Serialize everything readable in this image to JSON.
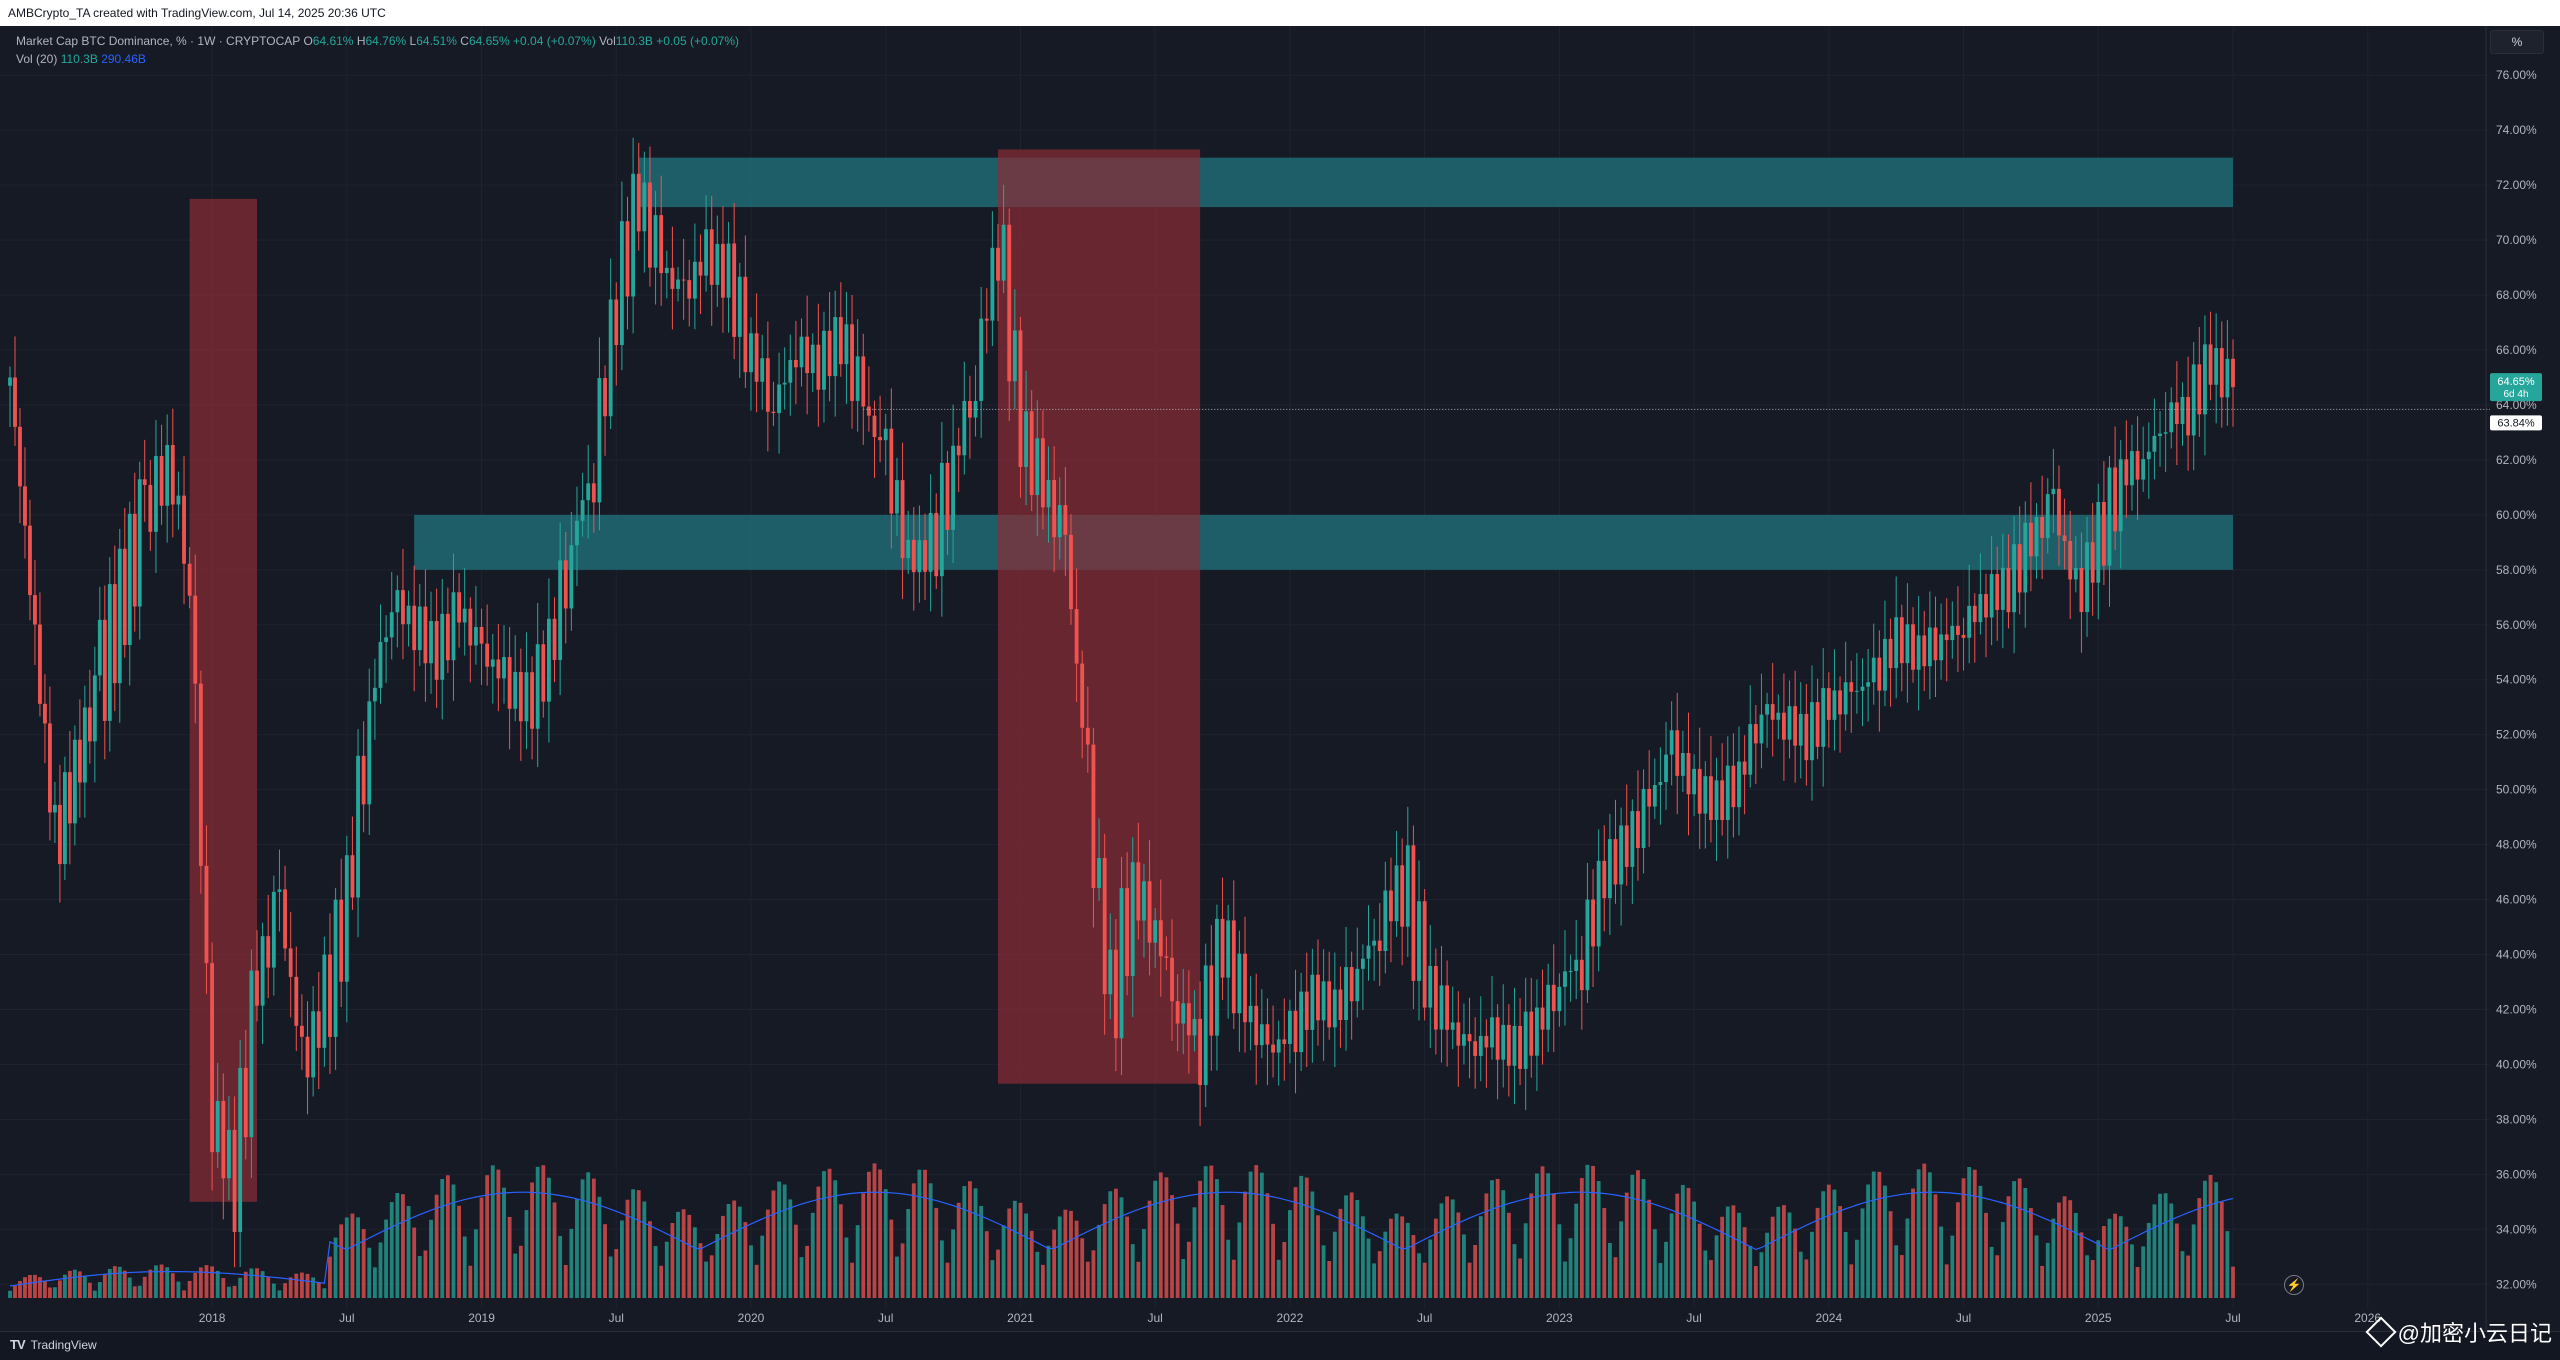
{
  "header": {
    "caption": "AMBCrypto_TA created with TradingView.com, Jul 14, 2025 20:36 UTC"
  },
  "legend": {
    "symbol": "Market Cap BTC Dominance, % · 1W · CRYPTOCAP",
    "o_label": "O",
    "o_value": "64.61%",
    "h_label": "H",
    "h_value": "64.76%",
    "l_label": "L",
    "l_value": "64.51%",
    "c_label": "C",
    "c_value": "64.65%",
    "change": "+0.04 (+0.07%)",
    "vol_label": "Vol",
    "vol_value": "110.3B",
    "vol_change": "+0.05 (+0.07%)",
    "vol20_label": "Vol (20)",
    "vol20_value": "110.3B",
    "vol20_ma": "290.46B"
  },
  "toolbar": {
    "percent_button": "%"
  },
  "price_labels": {
    "last": "64.65%",
    "countdown": "6d 4h",
    "line": "63.84%"
  },
  "footer": {
    "brand": "TradingView",
    "logo": "TV",
    "watermark": "@加密小云日记"
  },
  "colors": {
    "background": "#161a25",
    "up": "#26a69a",
    "down": "#ef5350",
    "zone_support": "#1f6b74",
    "zone_drop": "#8b2c35",
    "vol_ma": "#2962ff"
  },
  "chart_data": {
    "type": "candlestick",
    "title": "Market Cap BTC Dominance, %",
    "timeframe": "1W",
    "ylim": [
      31.5,
      77.5
    ],
    "y_ticks": [
      "32.00%",
      "34.00%",
      "36.00%",
      "38.00%",
      "40.00%",
      "42.00%",
      "44.00%",
      "46.00%",
      "48.00%",
      "50.00%",
      "52.00%",
      "54.00%",
      "56.00%",
      "58.00%",
      "60.00%",
      "62.00%",
      "64.00%",
      "66.00%",
      "68.00%",
      "70.00%",
      "72.00%",
      "74.00%",
      "76.00%"
    ],
    "x_ticks": [
      "2018",
      "Jul",
      "2019",
      "Jul",
      "2020",
      "Jul",
      "2021",
      "Jul",
      "2022",
      "Jul",
      "2023",
      "Jul",
      "2024",
      "Jul",
      "2025",
      "Jul",
      "2026"
    ],
    "x_range": [
      "2017-04",
      "2026-06"
    ],
    "series": [
      {
        "name": "BTC Dominance close (approx.)",
        "points": [
          [
            "2017-04",
            65.0
          ],
          [
            "2017-06",
            48.0
          ],
          [
            "2017-08",
            54.0
          ],
          [
            "2017-10",
            60.0
          ],
          [
            "2017-11",
            62.0
          ],
          [
            "2017-12",
            58.0
          ],
          [
            "2018-01",
            38.0
          ],
          [
            "2018-02",
            36.0
          ],
          [
            "2018-03",
            43.0
          ],
          [
            "2018-04",
            46.0
          ],
          [
            "2018-05",
            40.0
          ],
          [
            "2018-06",
            42.0
          ],
          [
            "2018-07",
            46.0
          ],
          [
            "2018-08",
            53.0
          ],
          [
            "2018-09",
            57.0
          ],
          [
            "2018-10",
            56.0
          ],
          [
            "2018-11",
            55.0
          ],
          [
            "2018-12",
            56.5
          ],
          [
            "2019-01",
            55.0
          ],
          [
            "2019-02",
            54.0
          ],
          [
            "2019-03",
            53.0
          ],
          [
            "2019-04",
            55.0
          ],
          [
            "2019-05",
            59.0
          ],
          [
            "2019-06",
            62.0
          ],
          [
            "2019-07",
            68.0
          ],
          [
            "2019-08",
            71.5
          ],
          [
            "2019-09",
            69.0
          ],
          [
            "2019-10",
            68.0
          ],
          [
            "2019-11",
            69.5
          ],
          [
            "2019-12",
            68.5
          ],
          [
            "2020-01",
            66.0
          ],
          [
            "2020-02",
            64.0
          ],
          [
            "2020-03",
            66.0
          ],
          [
            "2020-04",
            65.5
          ],
          [
            "2020-05",
            66.5
          ],
          [
            "2020-06",
            64.0
          ],
          [
            "2020-07",
            62.0
          ],
          [
            "2020-08",
            58.5
          ],
          [
            "2020-09",
            58.5
          ],
          [
            "2020-10",
            62.0
          ],
          [
            "2020-11",
            65.0
          ],
          [
            "2020-12",
            70.5
          ],
          [
            "2021-01",
            63.0
          ],
          [
            "2021-02",
            61.0
          ],
          [
            "2021-03",
            59.0
          ],
          [
            "2021-04",
            50.0
          ],
          [
            "2021-05",
            42.0
          ],
          [
            "2021-06",
            46.5
          ],
          [
            "2021-07",
            45.0
          ],
          [
            "2021-08",
            42.0
          ],
          [
            "2021-09",
            41.0
          ],
          [
            "2021-10",
            44.5
          ],
          [
            "2021-11",
            42.0
          ],
          [
            "2021-12",
            40.5
          ],
          [
            "2022-01",
            41.0
          ],
          [
            "2022-02",
            42.5
          ],
          [
            "2022-03",
            42.0
          ],
          [
            "2022-04",
            43.5
          ],
          [
            "2022-05",
            45.0
          ],
          [
            "2022-06",
            47.0
          ],
          [
            "2022-07",
            43.0
          ],
          [
            "2022-08",
            41.5
          ],
          [
            "2022-09",
            40.5
          ],
          [
            "2022-10",
            41.0
          ],
          [
            "2022-11",
            40.5
          ],
          [
            "2022-12",
            41.5
          ],
          [
            "2023-01",
            43.0
          ],
          [
            "2023-02",
            44.0
          ],
          [
            "2023-03",
            47.0
          ],
          [
            "2023-04",
            48.0
          ],
          [
            "2023-05",
            49.5
          ],
          [
            "2023-06",
            51.5
          ],
          [
            "2023-07",
            50.0
          ],
          [
            "2023-08",
            49.5
          ],
          [
            "2023-09",
            50.5
          ],
          [
            "2023-10",
            53.0
          ],
          [
            "2023-11",
            52.5
          ],
          [
            "2023-12",
            52.0
          ],
          [
            "2024-01",
            53.0
          ],
          [
            "2024-02",
            53.5
          ],
          [
            "2024-03",
            54.0
          ],
          [
            "2024-04",
            55.5
          ],
          [
            "2024-05",
            55.0
          ],
          [
            "2024-06",
            55.5
          ],
          [
            "2024-07",
            56.0
          ],
          [
            "2024-08",
            57.0
          ],
          [
            "2024-09",
            57.5
          ],
          [
            "2024-10",
            59.0
          ],
          [
            "2024-11",
            60.5
          ],
          [
            "2024-12",
            57.0
          ],
          [
            "2025-01",
            59.0
          ],
          [
            "2025-02",
            61.5
          ],
          [
            "2025-03",
            62.0
          ],
          [
            "2025-04",
            63.5
          ],
          [
            "2025-05",
            64.0
          ],
          [
            "2025-06",
            65.5
          ],
          [
            "2025-07",
            64.65
          ]
        ]
      }
    ],
    "zones": [
      {
        "type": "resistance",
        "from": "2019-08",
        "to": "2025-07",
        "y_low": 71.2,
        "y_high": 73.0
      },
      {
        "type": "support",
        "from": "2018-10",
        "to": "2025-07",
        "y_low": 58.0,
        "y_high": 60.0
      },
      {
        "type": "drop",
        "from": "2017-12",
        "to": "2018-03",
        "y_low": 35.0,
        "y_high": 71.5
      },
      {
        "type": "drop",
        "from": "2020-12",
        "to": "2021-09",
        "y_low": 39.3,
        "y_high": 73.3
      }
    ],
    "last_value": 64.65,
    "reference_line": 63.84,
    "volume": {
      "name": "Vol (20)",
      "ma_label": "290.46B"
    }
  }
}
